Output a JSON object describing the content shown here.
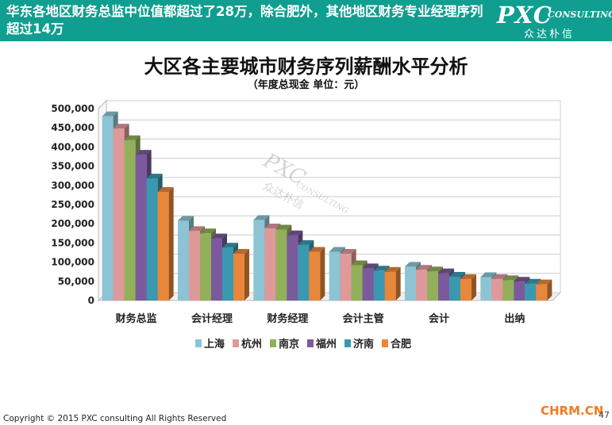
{
  "header": {
    "headline": "华东各地区财务总监中位值都超过了28万，除合肥外，其他地区财务专业经理序列超过14万",
    "logo_main": "PXC",
    "logo_sub": "CONSULTING",
    "logo_cn": "众达朴信"
  },
  "watermark": {
    "main": "PXC",
    "sub": "CONSULTING",
    "cn": "众达朴信"
  },
  "footer": {
    "copyright": "Copyright © 2015 PXC consulting All Rights Reserved",
    "site": "CHRM.CN",
    "page": "47"
  },
  "chart_data": {
    "type": "bar",
    "title": "大区各主要城市财务序列薪酬水平分析",
    "subtitle": "（年度总现金 单位：元）",
    "categories": [
      "财务总监",
      "会计经理",
      "财务经理",
      "会计主管",
      "会计",
      "出纳"
    ],
    "ylim": [
      0,
      500000
    ],
    "yticks": [
      "0",
      "50,000",
      "100,000",
      "150,000",
      "200,000",
      "250,000",
      "300,000",
      "350,000",
      "400,000",
      "450,000",
      "500,000"
    ],
    "grid": true,
    "legend_position": "bottom",
    "series": [
      {
        "name": "上海",
        "color": "#8cc4d4",
        "values": [
          480000,
          208000,
          210000,
          127000,
          88000,
          61000
        ]
      },
      {
        "name": "杭州",
        "color": "#e0999a",
        "values": [
          448000,
          181000,
          188000,
          122000,
          80000,
          56000
        ]
      },
      {
        "name": "南京",
        "color": "#92b05a",
        "values": [
          418000,
          175000,
          185000,
          92000,
          76000,
          53000
        ]
      },
      {
        "name": "福州",
        "color": "#7a5a9c",
        "values": [
          380000,
          162000,
          170000,
          84000,
          71000,
          49000
        ]
      },
      {
        "name": "济南",
        "color": "#3a98b0",
        "values": [
          318000,
          138000,
          145000,
          78000,
          62000,
          44000
        ]
      },
      {
        "name": "合肥",
        "color": "#e8873a",
        "values": [
          283000,
          122000,
          127000,
          75000,
          56000,
          42000
        ]
      }
    ]
  }
}
